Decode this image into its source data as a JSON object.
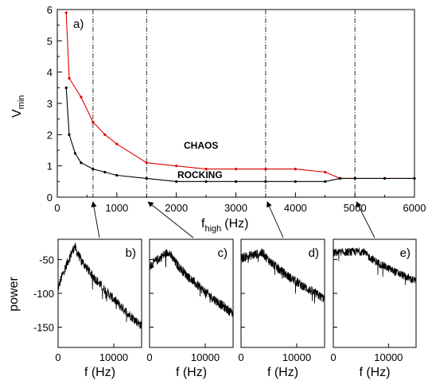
{
  "chart_data": [
    {
      "type": "line",
      "panel_label": "a)",
      "xlabel": "f",
      "xlabel_sub": "high",
      "xlabel_unit": "(Hz)",
      "ylabel": "V",
      "ylabel_sub": "min",
      "xlim": [
        0,
        6000
      ],
      "ylim": [
        0,
        6
      ],
      "xticks": [
        0,
        1000,
        2000,
        3000,
        4000,
        5000,
        6000
      ],
      "yticks": [
        0,
        1,
        2,
        3,
        4,
        5,
        6
      ],
      "vlines": [
        600,
        1500,
        3500,
        5000
      ],
      "grid": false,
      "annotations": [
        {
          "text": "CHAOS",
          "x": 2800,
          "y": 1.6
        },
        {
          "text": "ROCKING",
          "x": 2500,
          "y": 0.7
        }
      ],
      "series": [
        {
          "color": "#e00000",
          "x": [
            150,
            200,
            400,
            600,
            800,
            1000,
            1500,
            2000,
            2500,
            3000,
            3500,
            4000,
            4500,
            4750,
            5000,
            5500,
            6000
          ],
          "y": [
            5.9,
            3.8,
            3.2,
            2.4,
            2.0,
            1.7,
            1.1,
            1.0,
            0.9,
            0.9,
            0.9,
            0.9,
            0.8,
            0.6,
            0.6,
            0.6,
            0.6
          ]
        },
        {
          "color": "#000000",
          "x": [
            150,
            200,
            300,
            400,
            600,
            800,
            1000,
            1500,
            2000,
            2500,
            3000,
            3500,
            4000,
            4500,
            4750,
            5000,
            5500,
            6000
          ],
          "y": [
            3.5,
            2.0,
            1.4,
            1.1,
            0.9,
            0.8,
            0.7,
            0.6,
            0.5,
            0.5,
            0.5,
            0.5,
            0.5,
            0.5,
            0.6,
            0.6,
            0.6,
            0.6
          ]
        }
      ],
      "arrows": [
        {
          "from_panel": "b)",
          "to_x": 600
        },
        {
          "from_panel": "c)",
          "to_x": 1500
        },
        {
          "from_panel": "d)",
          "to_x": 3500
        },
        {
          "from_panel": "e)",
          "to_x": 5000
        }
      ]
    },
    {
      "type": "line",
      "panel_label": "b)",
      "xlabel": "f (Hz)",
      "ylabel": "power",
      "xlim": [
        0,
        15000
      ],
      "ylim": [
        -180,
        -20
      ],
      "xticks": [
        0,
        10000
      ],
      "yticks": [
        -50,
        -100,
        -150
      ],
      "peak_x": 3000,
      "peak_y": -30,
      "low_x": 0,
      "low_y": -95,
      "tail_y": -148,
      "noise": 7
    },
    {
      "type": "line",
      "panel_label": "c)",
      "xlabel": "f (Hz)",
      "xlim": [
        0,
        15000
      ],
      "ylim": [
        -180,
        -20
      ],
      "xticks": [
        0,
        10000
      ],
      "peak_x": 3500,
      "peak_y": -38,
      "low_x": 0,
      "low_y": -62,
      "tail_y": -130,
      "noise": 7
    },
    {
      "type": "line",
      "panel_label": "d)",
      "xlabel": "f (Hz)",
      "xlim": [
        0,
        15000
      ],
      "ylim": [
        -180,
        -20
      ],
      "xticks": [
        0,
        10000
      ],
      "peak_x": 4000,
      "peak_y": -40,
      "low_x": 0,
      "low_y": -48,
      "tail_y": -108,
      "noise": 7
    },
    {
      "type": "line",
      "panel_label": "e)",
      "xlabel": "f (Hz)",
      "xlim": [
        0,
        15000
      ],
      "ylim": [
        -180,
        -20
      ],
      "xticks": [
        0,
        10000
      ],
      "peak_x": 5500,
      "peak_y": -38,
      "low_x": 0,
      "low_y": -40,
      "tail_y": -82,
      "noise": 6
    }
  ]
}
